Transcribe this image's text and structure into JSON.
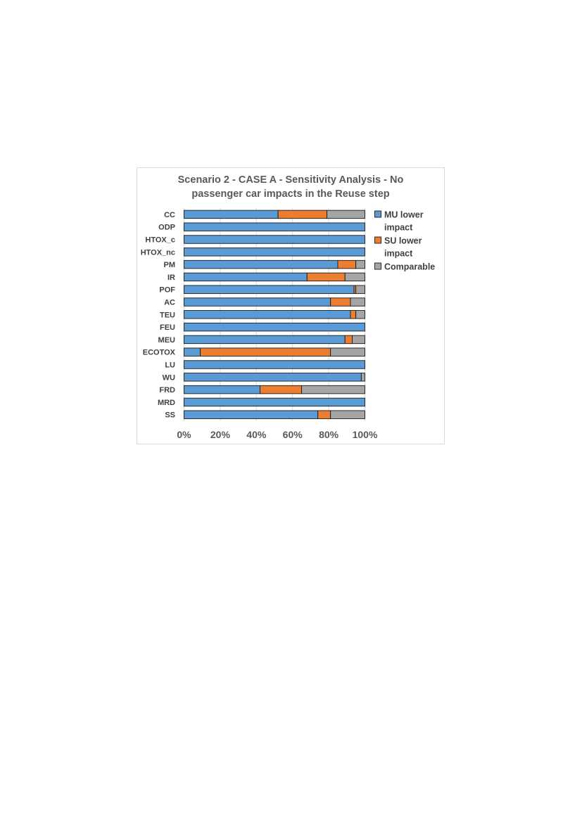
{
  "chart_data": {
    "type": "bar",
    "orientation": "horizontal",
    "stacked": "percent",
    "title_lines": [
      "Scenario 2 - CASE A - Sensitivity Analysis - No",
      "passenger car impacts in the Reuse step"
    ],
    "categories": [
      "CC",
      "ODP",
      "HTOX_c",
      "HTOX_nc",
      "PM",
      "IR",
      "POF",
      "AC",
      "TEU",
      "FEU",
      "MEU",
      "ECOTOX",
      "LU",
      "WU",
      "FRD",
      "MRD",
      "SS"
    ],
    "series": [
      {
        "name": "MU lower impact",
        "color": "#5b9bd5",
        "values": [
          52,
          100,
          100,
          100,
          85,
          68,
          94,
          81,
          92,
          100,
          89,
          9,
          100,
          98,
          42,
          100,
          74
        ]
      },
      {
        "name": "SU lower impact",
        "color": "#ed7d31",
        "values": [
          27,
          0,
          0,
          0,
          10,
          21,
          1,
          11,
          3,
          0,
          4,
          72,
          0,
          0,
          23,
          0,
          7
        ]
      },
      {
        "name": "Comparable",
        "color": "#a5a5a5",
        "values": [
          21,
          0,
          0,
          0,
          5,
          11,
          5,
          8,
          5,
          0,
          7,
          19,
          0,
          2,
          35,
          0,
          19
        ]
      }
    ],
    "x_ticks": [
      "0%",
      "20%",
      "40%",
      "60%",
      "80%",
      "100%"
    ],
    "xlim": [
      0,
      100
    ],
    "grid": true,
    "legend_position": "right",
    "legend_lines": [
      [
        "MU lower",
        "impact"
      ],
      [
        "SU lower",
        "impact"
      ],
      [
        "Comparable"
      ]
    ]
  }
}
